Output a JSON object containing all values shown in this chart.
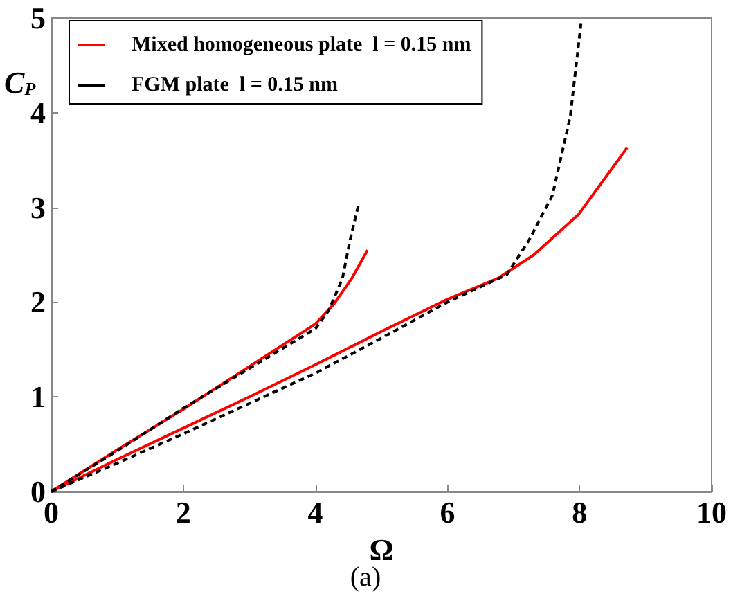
{
  "chart_data": {
    "type": "line",
    "xlabel": "Ω",
    "ylabel": "C$_{P}$",
    "annotations": [
      "(a)"
    ],
    "xlim": [
      0,
      10
    ],
    "xticks": [
      0,
      2,
      4,
      6,
      8,
      10
    ],
    "ylim": [
      0,
      5
    ],
    "yticks": [
      0,
      1,
      2,
      3,
      4,
      5
    ],
    "grid": false,
    "legend": "top left",
    "marker": "none",
    "series": [
      {
        "name": "Mixed homogeneous plate  l = 0.15 nm",
        "color": "#ff0000",
        "line_style": "solid",
        "x": [
          0,
          1,
          2,
          3,
          4,
          4.28,
          4.48,
          4.55,
          4.79
        ],
        "values": [
          0,
          0.44,
          0.87,
          1.32,
          1.77,
          1.98,
          2.18,
          2.25,
          2.55
        ]
      },
      {
        "color": "#ff0000",
        "line_style": "solid",
        "x": [
          0,
          1,
          2,
          3,
          4,
          5,
          6,
          6.76,
          7.31,
          7.99,
          8.72
        ],
        "values": [
          0,
          0.34,
          0.67,
          1.0,
          1.34,
          1.69,
          2.03,
          2.25,
          2.5,
          2.93,
          3.63
        ]
      },
      {
        "name": "FGM plate  l = 0.15 nm",
        "color": "#000000",
        "line_style": "dashed",
        "x": [
          0,
          1,
          2,
          3,
          4,
          4.2,
          4.41,
          4.52,
          4.66
        ],
        "values": [
          0,
          0.43,
          0.88,
          1.3,
          1.72,
          1.91,
          2.25,
          2.64,
          3.05
        ]
      },
      {
        "color": "#000000",
        "line_style": "dashed",
        "x": [
          0,
          1,
          2,
          3,
          4,
          5,
          6,
          6.9,
          7.24,
          7.59,
          7.86,
          8.03
        ],
        "values": [
          0,
          0.3,
          0.61,
          0.93,
          1.25,
          1.62,
          2.0,
          2.29,
          2.66,
          3.13,
          3.96,
          4.99
        ]
      }
    ]
  }
}
